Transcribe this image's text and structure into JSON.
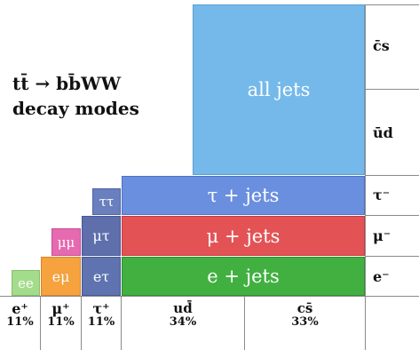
{
  "title": {
    "line1": "tt̄ → bb̄WW",
    "line2": "decay modes"
  },
  "blocks": {
    "all_jets": "all jets",
    "tau_jets": "τ + jets",
    "mu_jets": "μ + jets",
    "e_jets": "e + jets",
    "tautau": "ττ",
    "mutau": "μτ",
    "etau": "eτ",
    "mumu": "μμ",
    "emu": "eμ",
    "ee": "ee"
  },
  "right_labels": {
    "cs": "c̄s",
    "ud": "ūd",
    "tau": "τ⁻",
    "mu": "μ⁻",
    "e": "e⁻"
  },
  "bottom_labels": {
    "e": {
      "name": "e⁺",
      "pct": "11%"
    },
    "mu": {
      "name": "μ⁺",
      "pct": "11%"
    },
    "tau": {
      "name": "τ⁺",
      "pct": "11%"
    },
    "ud": {
      "name": "ud̄",
      "pct": "34%"
    },
    "cs": {
      "name": "cs̄",
      "pct": "33%"
    }
  },
  "colors": {
    "all_jets": "#74b9ea",
    "tau_jets": "#6b8fdf",
    "mu_jets": "#e35356",
    "e_jets": "#41b040",
    "tautau": "#6a7fbd",
    "mutau": "#5e6fac",
    "etau": "#5f73b0",
    "mumu": "#e66ab0",
    "emu": "#f5a23f",
    "ee": "#a3dc8a"
  }
}
